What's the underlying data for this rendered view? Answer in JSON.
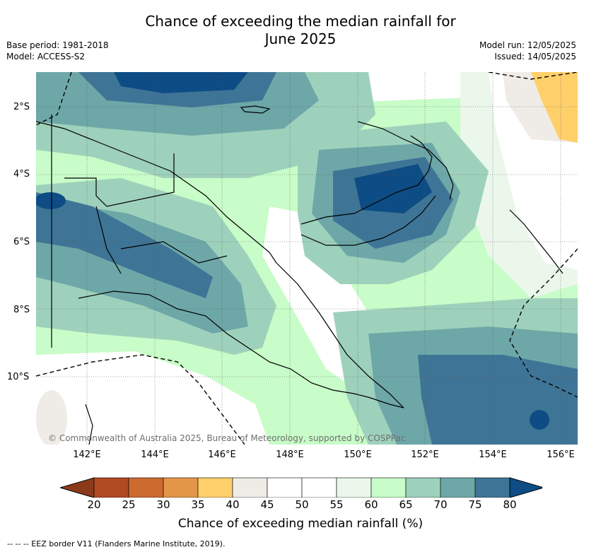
{
  "title_line1": "Chance of exceeding the median rainfall for",
  "title_line2": "June 2025",
  "meta": {
    "base_period": "Base period: 1981-2018",
    "model": "Model: ACCESS-S2",
    "model_run": "Model run: 12/05/2025",
    "issued": "Issued: 14/05/2025"
  },
  "lat_labels": [
    "2°S",
    "4°S",
    "6°S",
    "8°S",
    "10°S"
  ],
  "lon_labels": [
    "142°E",
    "144°E",
    "146°E",
    "148°E",
    "150°E",
    "152°E",
    "154°E",
    "156°E"
  ],
  "copyright": "© Commonwealth of Australia 2025, Bureau of Meteorology, supported by COSPPac",
  "colorbar": {
    "title": "Chance of exceeding median rainfall (%)",
    "ticks": [
      "20",
      "25",
      "30",
      "35",
      "40",
      "45",
      "50",
      "55",
      "60",
      "65",
      "70",
      "75",
      "80"
    ],
    "colors": [
      "#8c3a1c",
      "#b04a22",
      "#cc6a30",
      "#e39548",
      "#ffd06a",
      "#efebe6",
      "#ffffff",
      "#ffffff",
      "#ebf7eb",
      "#c8fcc8",
      "#9ed1bb",
      "#6ea7a8",
      "#3e7596",
      "#0e4c85"
    ]
  },
  "legend_note": "--  --  -- EEZ border V11 (Flanders Marine Institute, 2019)."
}
